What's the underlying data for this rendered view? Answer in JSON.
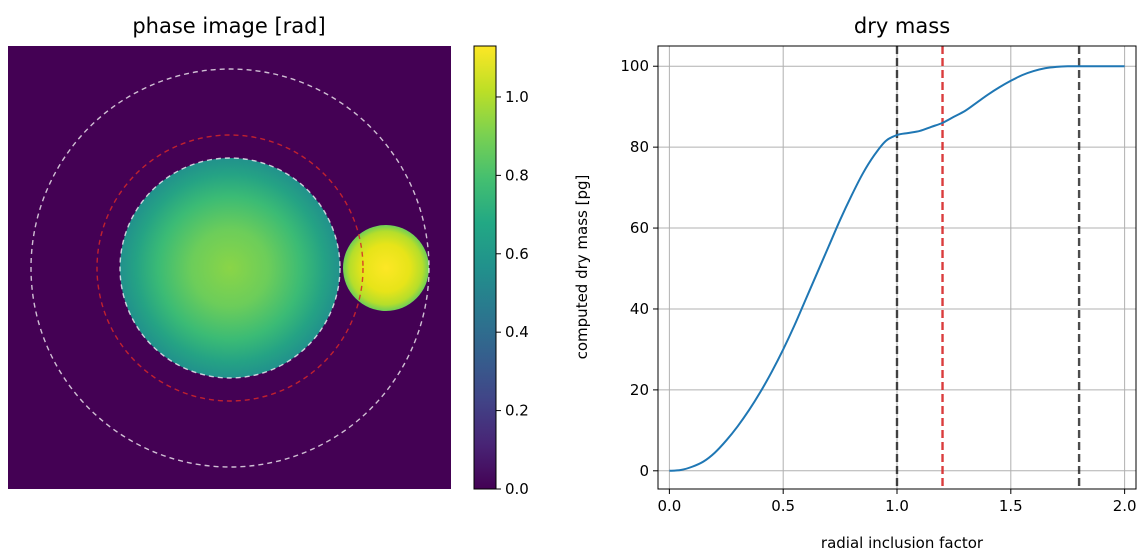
{
  "colors": {
    "background": "#440154",
    "cell": "#35b779",
    "cell_center": "#8ad547",
    "bead": "#fde725",
    "bead_edge": "#b5de2b",
    "curve": "#1f77b4",
    "black_dashed": "#000000",
    "red_dashed": "#d62728",
    "white_dashed": "#ffffff",
    "grid": "#b0b0b0"
  },
  "chart_data": [
    {
      "type": "heatmap",
      "title": "phase image [rad]",
      "colorscale": "viridis",
      "value_range": [
        0.0,
        1.13
      ],
      "colorbar_ticks": [
        "0.0",
        "0.2",
        "0.4",
        "0.6",
        "0.8",
        "1.0"
      ],
      "colorbar_tick_values": [
        0.0,
        0.2,
        0.4,
        0.6,
        0.8,
        1.0
      ],
      "axes_visible": false
    },
    {
      "type": "line",
      "title": "dry mass",
      "xlabel": "radial inclusion factor",
      "ylabel": "computed dry mass [pg]",
      "xlim": [
        -0.05,
        2.05
      ],
      "ylim": [
        -4.5,
        105
      ],
      "xticks": [
        "0.0",
        "0.5",
        "1.0",
        "1.5",
        "2.0"
      ],
      "xtick_values": [
        0.0,
        0.5,
        1.0,
        1.5,
        2.0
      ],
      "yticks": [
        "0",
        "20",
        "40",
        "60",
        "80",
        "100"
      ],
      "ytick_values": [
        0,
        20,
        40,
        60,
        80,
        100
      ],
      "grid": true,
      "series": [
        {
          "x": [
            0.0,
            0.05,
            0.1,
            0.15,
            0.2,
            0.25,
            0.3,
            0.35,
            0.4,
            0.45,
            0.5,
            0.55,
            0.6,
            0.65,
            0.7,
            0.75,
            0.8,
            0.85,
            0.9,
            0.95,
            1.0,
            1.05,
            1.1,
            1.15,
            1.2,
            1.25,
            1.3,
            1.35,
            1.4,
            1.45,
            1.5,
            1.55,
            1.6,
            1.65,
            1.7,
            1.75,
            1.8,
            1.85,
            1.9,
            1.95,
            2.0
          ],
          "values": [
            0.0,
            0.2,
            1.0,
            2.3,
            4.5,
            7.5,
            11.0,
            15.0,
            19.5,
            24.5,
            30.0,
            36.0,
            42.5,
            49.0,
            55.5,
            62.0,
            68.0,
            73.5,
            78.0,
            81.5,
            83.0,
            83.5,
            84.0,
            85.0,
            86.0,
            87.5,
            89.0,
            91.0,
            93.0,
            94.8,
            96.4,
            97.8,
            98.8,
            99.5,
            99.85,
            100.0,
            100.0,
            100.0,
            100.0,
            100.0,
            100.0
          ]
        }
      ],
      "vlines": [
        {
          "x": 1.0,
          "color": "black_dashed"
        },
        {
          "x": 1.2,
          "color": "red_dashed"
        },
        {
          "x": 1.8,
          "color": "black_dashed"
        }
      ]
    }
  ]
}
